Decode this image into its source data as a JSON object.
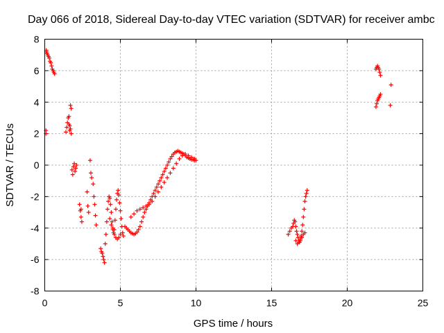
{
  "chart_data": {
    "type": "scatter",
    "title": "Day 066 of 2018, Sidereal Day-to-day VTEC variation (SDTVAR) for receiver ambc",
    "xlabel": "GPS time / hours",
    "ylabel": "SDTVAR / TECUs",
    "xlim": [
      0,
      25
    ],
    "ylim": [
      -8,
      8
    ],
    "xticks": [
      0,
      5,
      10,
      15,
      20,
      25
    ],
    "yticks": [
      -8,
      -6,
      -4,
      -2,
      0,
      2,
      4,
      6,
      8
    ],
    "grid": true,
    "marker": "+",
    "marker_color": "#ff0000",
    "series": [
      {
        "name": "SDTVAR",
        "x": [
          0.08,
          0.1,
          0.15,
          0.2,
          0.25,
          0.3,
          0.35,
          0.4,
          0.45,
          0.5,
          0.55,
          0.6,
          0.65,
          0.08,
          0.1,
          1.4,
          1.45,
          1.5,
          1.55,
          1.6,
          1.65,
          1.7,
          1.75,
          1.6,
          1.65,
          1.7,
          1.75,
          1.8,
          1.85,
          1.9,
          1.95,
          2.0,
          2.05,
          2.1,
          2.3,
          2.35,
          2.4,
          2.45,
          2.4,
          2.8,
          2.85,
          2.9,
          3.0,
          3.05,
          3.1,
          3.2,
          3.25,
          3.3,
          3.35,
          3.4,
          3.7,
          3.75,
          3.8,
          3.85,
          3.9,
          3.95,
          4.0,
          4.05,
          4.1,
          4.15,
          4.2,
          4.25,
          4.3,
          4.35,
          4.4,
          4.45,
          4.5,
          4.55,
          4.6,
          4.65,
          4.7,
          4.75,
          4.8,
          4.85,
          4.9,
          4.95,
          5.0,
          5.05,
          5.1,
          5.15,
          5.2,
          4.3,
          4.4,
          4.5,
          4.6,
          4.7,
          4.8,
          4.9,
          5.0,
          5.3,
          5.4,
          5.5,
          5.6,
          5.7,
          5.8,
          5.9,
          6.0,
          6.1,
          6.2,
          6.3,
          6.4,
          6.5,
          6.6,
          6.7,
          6.8,
          6.9,
          7.0,
          7.1,
          7.2,
          7.3,
          7.4,
          7.5,
          7.6,
          7.7,
          7.8,
          7.9,
          8.0,
          8.1,
          8.2,
          8.3,
          8.4,
          8.5,
          8.6,
          8.7,
          8.8,
          8.9,
          9.0,
          9.1,
          9.2,
          9.3,
          9.4,
          9.5,
          9.6,
          9.7,
          9.8,
          9.9,
          10.0,
          5.7,
          5.9,
          6.1,
          6.3,
          6.5,
          6.7,
          6.9,
          7.1,
          7.3,
          7.5,
          7.7,
          7.9,
          8.1,
          8.3,
          8.5,
          8.7,
          8.9,
          9.1,
          9.3,
          9.5,
          9.7,
          9.9,
          16.1,
          16.2,
          16.3,
          16.4,
          16.45,
          16.5,
          16.55,
          16.6,
          16.65,
          16.7,
          16.75,
          16.8,
          16.85,
          16.9,
          16.95,
          17.0,
          17.05,
          17.1,
          17.15,
          17.2,
          17.25,
          17.3,
          17.35,
          16.6,
          16.7,
          16.8,
          16.9,
          17.0,
          17.1,
          17.2,
          21.9,
          21.95,
          22.0,
          22.05,
          22.1,
          22.15,
          22.2,
          21.9,
          21.95,
          22.0,
          22.05,
          22.1,
          22.15,
          22.2,
          22.85,
          22.9
        ],
        "y": [
          2.0,
          7.3,
          7.1,
          7.0,
          6.9,
          6.8,
          6.6,
          6.5,
          6.3,
          6.1,
          6.0,
          5.9,
          5.8,
          2.2,
          7.2,
          2.1,
          2.4,
          2.7,
          3.0,
          2.6,
          2.2,
          3.8,
          3.6,
          3.1,
          2.5,
          2.3,
          2.0,
          -0.3,
          -0.6,
          -0.1,
          0.1,
          -0.4,
          -0.2,
          0.0,
          -2.5,
          -2.9,
          -3.3,
          -3.6,
          -2.8,
          -1.7,
          -2.6,
          -3.0,
          0.3,
          -0.5,
          -0.8,
          -1.2,
          -2.0,
          -2.5,
          -3.2,
          -3.8,
          -5.3,
          -5.5,
          -5.6,
          -5.8,
          -6.0,
          -6.2,
          -5.0,
          -4.4,
          -3.6,
          -2.8,
          -2.3,
          -2.0,
          -2.1,
          -2.5,
          -3.0,
          -3.6,
          -4.0,
          -4.3,
          -4.1,
          -3.5,
          -2.8,
          -2.2,
          -1.8,
          -1.6,
          -1.9,
          -2.4,
          -2.9,
          -3.4,
          -3.9,
          -4.3,
          -4.5,
          -3.4,
          -3.8,
          -4.1,
          -4.4,
          -4.6,
          -4.7,
          -4.6,
          -4.4,
          -3.9,
          -4.0,
          -4.1,
          -4.2,
          -4.3,
          -4.35,
          -4.4,
          -4.35,
          -4.25,
          -4.1,
          -3.9,
          -3.6,
          -3.3,
          -3.0,
          -2.8,
          -2.6,
          -2.4,
          -2.2,
          -2.0,
          -1.8,
          -1.6,
          -1.4,
          -1.2,
          -1.0,
          -0.8,
          -0.6,
          -0.4,
          -0.2,
          0.0,
          0.2,
          0.4,
          0.55,
          0.7,
          0.8,
          0.85,
          0.9,
          0.85,
          0.8,
          0.75,
          0.7,
          0.6,
          0.5,
          0.45,
          0.4,
          0.35,
          0.35,
          0.3,
          0.3,
          -3.3,
          -3.1,
          -2.9,
          -2.8,
          -2.7,
          -2.6,
          -2.5,
          -2.3,
          -2.0,
          -1.7,
          -1.4,
          -1.1,
          -0.8,
          -0.5,
          -0.2,
          0.1,
          0.4,
          0.6,
          0.7,
          0.6,
          0.5,
          0.4,
          -4.4,
          -4.2,
          -4.0,
          -3.9,
          -3.7,
          -3.5,
          -3.6,
          -3.9,
          -4.2,
          -4.4,
          -4.6,
          -4.8,
          -4.9,
          -4.7,
          -4.5,
          -4.2,
          -3.8,
          -3.3,
          -2.8,
          -2.3,
          -2.0,
          -1.8,
          -1.6,
          -4.8,
          -5.0,
          -4.9,
          -4.8,
          -4.6,
          -4.4,
          -4.3,
          6.1,
          6.2,
          6.3,
          6.2,
          6.1,
          5.9,
          5.7,
          3.7,
          3.9,
          4.1,
          4.2,
          4.3,
          4.4,
          4.5,
          3.8,
          5.1
        ]
      }
    ]
  }
}
